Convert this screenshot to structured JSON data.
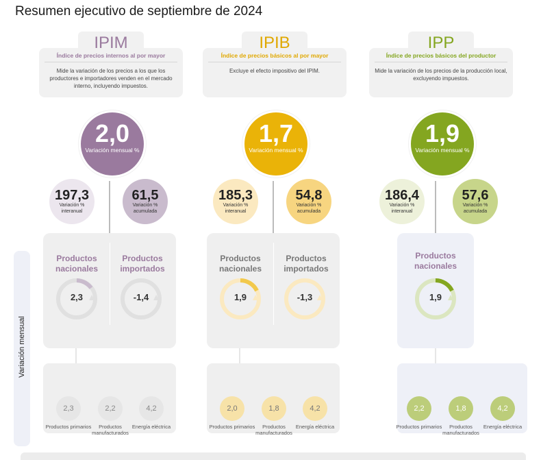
{
  "page_title": "Resumen ejecutivo de septiembre de 2024",
  "side_label": "Variación mensual",
  "colors": {
    "ipim": "#9a7a9e",
    "ipib": "#eab308",
    "ipp": "#84a620",
    "ipim_small": "#ece6ee",
    "ipim_small2": "#c9bbcd",
    "ipib_small": "#fbe9c0",
    "ipib_small2": "#f7d580",
    "ipp_small": "#edf1da",
    "ipp_small2": "#c7d58a"
  },
  "ipim": {
    "tab": "IPIM",
    "subtitle": "Índice de precios internos al por mayor",
    "description": "Mide la variación de los precios a los que los productores e importadores venden en el mercado interno, incluyendo impuestos.",
    "monthly_value": "2,0",
    "monthly_label": "Variación mensual %",
    "interannual_value": "197,3",
    "interannual_label": "Variación % interanual",
    "accumulated_value": "61,5",
    "accumulated_label": "Variación % acumulada",
    "national_title": "Productos nacionales",
    "national_value": "2,3",
    "imported_title": "Productos importados",
    "imported_value": "-1,4",
    "primary_value": "2,3",
    "primary_label": "Productos primarios",
    "manufactured_value": "2,2",
    "manufactured_label": "Productos manufacturados",
    "electric_value": "4,2",
    "electric_label": "Energía eléctrica"
  },
  "ipib": {
    "tab": "IPIB",
    "subtitle": "Índice de precios básicos al por mayor",
    "description": "Excluye el efecto impositivo del IPIM.",
    "monthly_value": "1,7",
    "monthly_label": "Variación mensual %",
    "interannual_value": "185,3",
    "interannual_label": "Variación % interanual",
    "accumulated_value": "54,8",
    "accumulated_label": "Variación % acumulada",
    "national_title": "Productos nacionales",
    "national_value": "1,9",
    "imported_title": "Productos importados",
    "imported_value": "-1,3",
    "primary_value": "2,0",
    "primary_label": "Productos primarios",
    "manufactured_value": "1,8",
    "manufactured_label": "Productos manufacturados",
    "electric_value": "4,2",
    "electric_label": "Energía eléctrica"
  },
  "ipp": {
    "tab": "IPP",
    "subtitle": "Índice de precios básicos del productor",
    "description": "Mide la variación de los precios de la producción local, excluyendo impuestos.",
    "monthly_value": "1,9",
    "monthly_label": "Variación mensual %",
    "interannual_value": "186,4",
    "interannual_label": "Variación % interanual",
    "accumulated_value": "57,6",
    "accumulated_label": "Variación % acumulada",
    "national_title": "Productos nacionales",
    "national_value": "1,9",
    "primary_value": "2,2",
    "primary_label": "Productos primarios",
    "manufactured_value": "1,8",
    "manufactured_label": "Productos manufacturados",
    "electric_value": "4,2",
    "electric_label": "Energía eléctrica"
  }
}
